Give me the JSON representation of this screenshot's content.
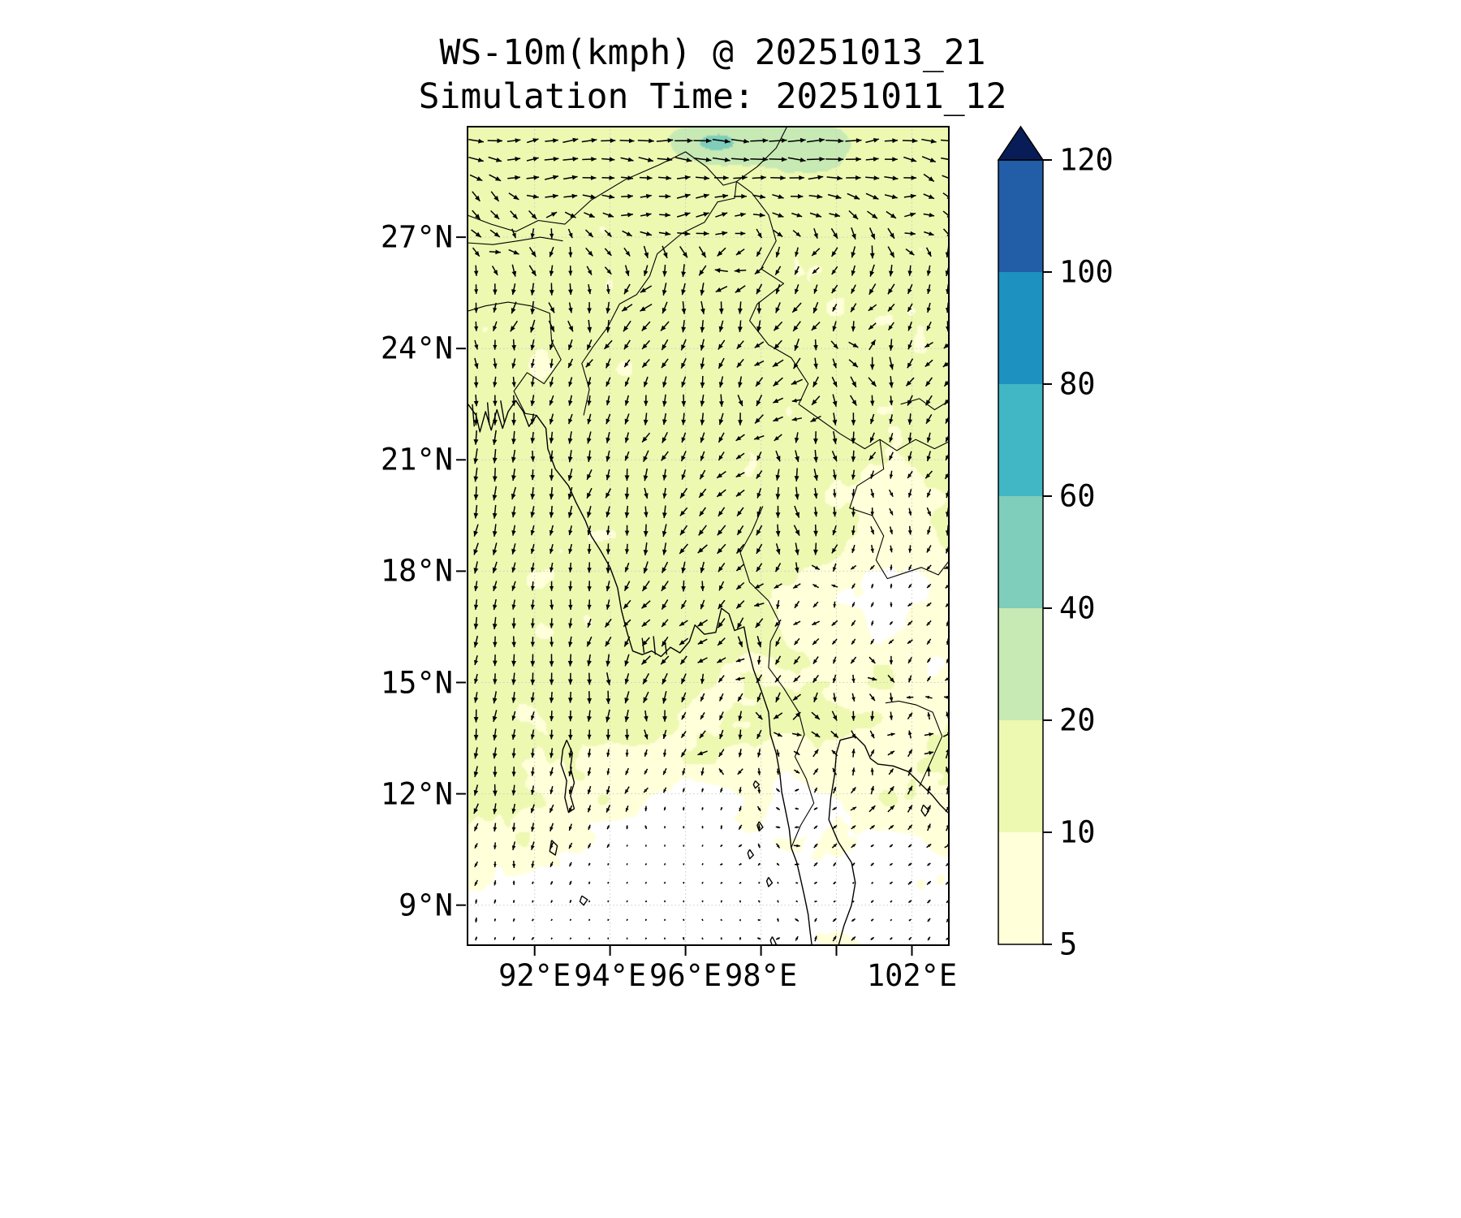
{
  "figure": {
    "title_line1": "WS-10m(kmph) @ 20251013_21",
    "title_line2": "Simulation Time: 20251011_12",
    "background": "#ffffff"
  },
  "chart_data": {
    "type": "heatmap",
    "subtype": "wind-speed-map-with-quiver",
    "title": "WS-10m(kmph) @ 20251013_21",
    "subtitle": "Simulation Time: 20251011_12",
    "variable": "10 m wind speed",
    "units": "kmph",
    "valid_time": "20251013_21",
    "simulation_time": "20251011_12",
    "map_extent": {
      "lon_min": 90.2,
      "lon_max": 103.0,
      "lat_min": 7.9,
      "lat_max": 30.0
    },
    "grid_on": true,
    "grid_color": "#cccccc",
    "x_axis": {
      "tick_lons": [
        92,
        94,
        96,
        98,
        100,
        102
      ],
      "tick_labels": [
        "92°E",
        "94°E",
        "96°E",
        "98°E",
        "",
        "102°E"
      ]
    },
    "y_axis": {
      "tick_lats": [
        27,
        24,
        21,
        18,
        15,
        12,
        9
      ],
      "tick_labels": [
        "27°N",
        "24°N",
        "21°N",
        "18°N",
        "15°N",
        "12°N",
        "9°N"
      ]
    },
    "colorbar": {
      "orientation": "vertical",
      "position": "right",
      "levels": [
        5,
        10,
        20,
        40,
        60,
        80,
        100,
        120
      ],
      "tick_labels": [
        "5",
        "10",
        "20",
        "40",
        "60",
        "80",
        "100",
        "120"
      ],
      "segment_colors": [
        "#ffffd9",
        "#edf8b1",
        "#c7e9b4",
        "#7fcdbb",
        "#41b6c4",
        "#1d91c0",
        "#225ea8"
      ],
      "extend_max_color": "#081d58",
      "below_min_color": "#ffffff"
    },
    "wind_speed_field": {
      "base_kmph": 12.5,
      "noise_amplitude_kmph": 5.0,
      "features": [
        {
          "name": "calm-zone-andaman-sea",
          "lon": 96.8,
          "lat": 10.6,
          "sx": 2.6,
          "sy": 1.9,
          "amp": -10
        },
        {
          "name": "calm-zone-southwest",
          "lon": 93.0,
          "lat": 8.3,
          "sx": 2.6,
          "sy": 1.5,
          "amp": -8
        },
        {
          "name": "calm-zone-east-thailand",
          "lon": 101.8,
          "lat": 17.0,
          "sx": 1.7,
          "sy": 2.2,
          "amp": -7
        },
        {
          "name": "calm-zone-southeast-corner",
          "lon": 102.9,
          "lat": 9.0,
          "sx": 1.8,
          "sy": 1.8,
          "amp": -7
        },
        {
          "name": "calm-band-south",
          "lon": 96.5,
          "lat": 8.0,
          "sx": 6.0,
          "sy": 1.6,
          "amp": -6
        },
        {
          "name": "breeze-bengal-coast",
          "lon": 90.4,
          "lat": 21.3,
          "sx": 1.1,
          "sy": 0.8,
          "amp": 6
        },
        {
          "name": "strong-wind-spot-north",
          "lon": 96.8,
          "lat": 29.55,
          "sx": 0.55,
          "sy": 0.28,
          "amp": 28
        },
        {
          "name": "wind-patch-northeast",
          "lon": 98.9,
          "lat": 29.5,
          "sx": 0.9,
          "sy": 0.5,
          "amp": 12
        },
        {
          "name": "wind-band-north-edge",
          "lon": 96.5,
          "lat": 30.0,
          "sx": 8.0,
          "sy": 1.2,
          "amp": 5
        }
      ]
    },
    "quiver": {
      "arrow_color": "#000000",
      "grid": {
        "lon_start": 90.45,
        "lat_start": 8.1,
        "step_deg": 0.5
      },
      "background_uv": [
        -0.15,
        -0.25
      ],
      "direction_noise": 0.45,
      "flow_regimes": [
        {
          "name": "northerly-over-bay-of-bengal",
          "u": 0.0,
          "v": -1.05,
          "lon": 91.5,
          "lat": 16.5,
          "sx": 3.2,
          "sy": 7.0
        },
        {
          "name": "westerly-along-himalaya",
          "u": 1.3,
          "v": 0.35,
          "lon": 96.6,
          "lat": 30.0,
          "sx": 9.0,
          "sy": 2.6
        },
        {
          "name": "southwesterly-gulf-of-thailand",
          "u": 0.75,
          "v": 0.9,
          "lon": 101.5,
          "lat": 10.0,
          "sx": 2.6,
          "sy": 3.2
        }
      ]
    },
    "coastlines": [
      [
        [
          90.2,
          22.55
        ],
        [
          90.45,
          22.2
        ],
        [
          90.55,
          21.75
        ],
        [
          90.7,
          22.3
        ],
        [
          90.85,
          21.8
        ],
        [
          91.0,
          22.35
        ],
        [
          91.15,
          21.85
        ],
        [
          91.3,
          22.3
        ],
        [
          91.5,
          22.6
        ],
        [
          91.7,
          22.3
        ],
        [
          91.85,
          21.9
        ],
        [
          92.05,
          22.2
        ],
        [
          92.3,
          21.85
        ],
        [
          92.35,
          21.3
        ],
        [
          92.55,
          20.75
        ],
        [
          92.9,
          20.3
        ],
        [
          93.1,
          19.85
        ],
        [
          93.35,
          19.35
        ],
        [
          93.5,
          18.95
        ],
        [
          93.75,
          18.55
        ],
        [
          94.0,
          18.1
        ],
        [
          94.2,
          17.55
        ],
        [
          94.3,
          16.95
        ],
        [
          94.45,
          16.35
        ],
        [
          94.6,
          15.85
        ],
        [
          94.85,
          15.75
        ],
        [
          95.1,
          15.85
        ],
        [
          95.35,
          15.7
        ],
        [
          95.6,
          15.95
        ],
        [
          95.85,
          15.8
        ],
        [
          96.1,
          16.1
        ],
        [
          96.25,
          16.55
        ],
        [
          96.5,
          16.3
        ],
        [
          96.8,
          16.35
        ],
        [
          96.95,
          17.0
        ],
        [
          97.15,
          16.85
        ],
        [
          97.3,
          16.4
        ],
        [
          97.55,
          16.5
        ],
        [
          97.65,
          15.95
        ],
        [
          97.8,
          15.35
        ],
        [
          98.0,
          14.8
        ],
        [
          98.2,
          14.2
        ],
        [
          98.25,
          13.6
        ],
        [
          98.4,
          13.1
        ],
        [
          98.5,
          12.55
        ],
        [
          98.55,
          12.05
        ],
        [
          98.65,
          11.55
        ],
        [
          98.75,
          11.05
        ],
        [
          98.8,
          10.55
        ],
        [
          98.95,
          10.15
        ],
        [
          99.05,
          9.7
        ],
        [
          99.15,
          9.25
        ],
        [
          99.25,
          8.75
        ],
        [
          99.3,
          8.3
        ],
        [
          99.35,
          7.9
        ]
      ],
      [
        [
          100.05,
          7.9
        ],
        [
          100.2,
          8.45
        ],
        [
          100.4,
          9.0
        ],
        [
          100.5,
          9.6
        ],
        [
          100.4,
          10.15
        ],
        [
          100.05,
          10.7
        ],
        [
          99.8,
          11.3
        ],
        [
          99.85,
          11.9
        ],
        [
          99.95,
          12.5
        ],
        [
          100.0,
          13.1
        ],
        [
          100.1,
          13.45
        ],
        [
          100.5,
          13.55
        ],
        [
          100.75,
          13.3
        ],
        [
          100.9,
          12.95
        ],
        [
          101.1,
          12.8
        ],
        [
          101.5,
          12.75
        ],
        [
          101.9,
          12.6
        ],
        [
          102.3,
          12.2
        ],
        [
          102.55,
          11.95
        ],
        [
          102.75,
          11.7
        ],
        [
          103.0,
          11.45
        ]
      ],
      [
        [
          92.85,
          13.45
        ],
        [
          93.0,
          13.1
        ],
        [
          92.95,
          12.7
        ],
        [
          93.05,
          12.3
        ],
        [
          92.95,
          11.95
        ],
        [
          93.05,
          11.6
        ],
        [
          92.9,
          11.5
        ],
        [
          92.8,
          11.9
        ],
        [
          92.85,
          12.35
        ],
        [
          92.7,
          12.8
        ],
        [
          92.75,
          13.2
        ],
        [
          92.85,
          13.45
        ]
      ],
      [
        [
          92.45,
          10.75
        ],
        [
          92.6,
          10.6
        ],
        [
          92.55,
          10.35
        ],
        [
          92.4,
          10.45
        ],
        [
          92.45,
          10.75
        ]
      ],
      [
        [
          93.25,
          9.25
        ],
        [
          93.4,
          9.15
        ],
        [
          93.3,
          9.0
        ],
        [
          93.2,
          9.1
        ],
        [
          93.25,
          9.25
        ]
      ],
      [
        [
          97.85,
          12.35
        ],
        [
          97.95,
          12.25
        ],
        [
          97.85,
          12.15
        ],
        [
          97.8,
          12.25
        ],
        [
          97.85,
          12.35
        ]
      ],
      [
        [
          97.95,
          11.25
        ],
        [
          98.05,
          11.1
        ],
        [
          97.95,
          11.0
        ],
        [
          97.9,
          11.15
        ],
        [
          97.95,
          11.25
        ]
      ],
      [
        [
          97.7,
          10.5
        ],
        [
          97.8,
          10.35
        ],
        [
          97.7,
          10.25
        ],
        [
          97.65,
          10.4
        ],
        [
          97.7,
          10.5
        ]
      ],
      [
        [
          98.2,
          9.75
        ],
        [
          98.3,
          9.6
        ],
        [
          98.2,
          9.5
        ],
        [
          98.15,
          9.65
        ],
        [
          98.2,
          9.75
        ]
      ],
      [
        [
          98.3,
          8.15
        ],
        [
          98.4,
          7.95
        ],
        [
          98.3,
          7.9
        ],
        [
          98.25,
          8.05
        ],
        [
          98.3,
          8.15
        ]
      ],
      [
        [
          102.3,
          11.7
        ],
        [
          102.45,
          11.55
        ],
        [
          102.35,
          11.4
        ],
        [
          102.25,
          11.55
        ],
        [
          102.3,
          11.7
        ]
      ],
      [
        [
          94.85,
          16.2
        ],
        [
          94.9,
          15.8
        ]
      ],
      [
        [
          95.15,
          16.25
        ],
        [
          95.2,
          15.75
        ]
      ],
      [
        [
          95.45,
          16.15
        ],
        [
          95.5,
          15.75
        ]
      ],
      [
        [
          90.35,
          22.5
        ],
        [
          90.4,
          21.9
        ]
      ],
      [
        [
          90.75,
          22.55
        ],
        [
          90.8,
          21.95
        ]
      ],
      [
        [
          91.1,
          22.6
        ],
        [
          91.2,
          22.0
        ]
      ]
    ],
    "borders": [
      [
        [
          90.2,
          25.0
        ],
        [
          90.7,
          25.15
        ],
        [
          91.3,
          25.25
        ],
        [
          91.9,
          25.15
        ],
        [
          92.4,
          24.95
        ],
        [
          92.45,
          24.2
        ],
        [
          92.7,
          23.7
        ],
        [
          92.25,
          23.05
        ],
        [
          91.8,
          23.35
        ],
        [
          91.45,
          22.85
        ],
        [
          91.75,
          22.25
        ],
        [
          92.05,
          22.2
        ],
        [
          92.3,
          21.85
        ]
      ],
      [
        [
          93.3,
          22.2
        ],
        [
          93.45,
          22.9
        ],
        [
          93.25,
          23.6
        ],
        [
          93.55,
          24.05
        ],
        [
          93.95,
          24.6
        ],
        [
          94.25,
          25.2
        ],
        [
          94.7,
          25.45
        ],
        [
          95.05,
          25.95
        ],
        [
          95.25,
          26.55
        ],
        [
          95.9,
          27.1
        ],
        [
          96.5,
          27.4
        ],
        [
          96.85,
          27.95
        ],
        [
          97.3,
          28.05
        ],
        [
          97.35,
          28.5
        ]
      ],
      [
        [
          97.35,
          28.5
        ],
        [
          97.75,
          28.2
        ],
        [
          98.2,
          27.6
        ],
        [
          98.4,
          26.9
        ],
        [
          98.0,
          26.15
        ],
        [
          98.6,
          25.75
        ],
        [
          97.9,
          25.2
        ],
        [
          97.7,
          24.75
        ],
        [
          98.2,
          24.1
        ],
        [
          98.8,
          23.75
        ],
        [
          99.25,
          23.05
        ],
        [
          99.0,
          22.5
        ],
        [
          99.55,
          22.1
        ],
        [
          100.1,
          21.7
        ],
        [
          100.75,
          21.3
        ],
        [
          101.15,
          21.55
        ],
        [
          101.6,
          21.25
        ],
        [
          102.1,
          21.55
        ],
        [
          102.6,
          21.3
        ],
        [
          103.0,
          21.5
        ]
      ],
      [
        [
          101.15,
          21.55
        ],
        [
          101.25,
          20.75
        ],
        [
          100.55,
          20.3
        ],
        [
          100.35,
          19.7
        ],
        [
          100.95,
          19.5
        ],
        [
          101.25,
          18.95
        ],
        [
          101.05,
          18.3
        ],
        [
          101.35,
          17.8
        ],
        [
          101.8,
          17.95
        ],
        [
          102.25,
          18.1
        ],
        [
          102.7,
          17.9
        ],
        [
          103.0,
          18.3
        ]
      ],
      [
        [
          98.05,
          19.75
        ],
        [
          97.75,
          19.05
        ],
        [
          97.45,
          18.5
        ],
        [
          97.7,
          17.7
        ],
        [
          98.2,
          17.2
        ],
        [
          98.5,
          16.6
        ],
        [
          98.25,
          16.1
        ],
        [
          98.2,
          15.4
        ],
        [
          98.6,
          14.85
        ],
        [
          99.0,
          14.2
        ],
        [
          99.15,
          13.6
        ],
        [
          98.9,
          13.0
        ],
        [
          99.2,
          12.4
        ],
        [
          99.4,
          11.75
        ],
        [
          99.05,
          11.15
        ],
        [
          98.8,
          10.55
        ]
      ],
      [
        [
          90.2,
          26.85
        ],
        [
          90.9,
          26.8
        ],
        [
          91.55,
          26.9
        ],
        [
          92.15,
          27.0
        ],
        [
          92.75,
          26.9
        ]
      ],
      [
        [
          90.2,
          27.6
        ],
        [
          90.85,
          27.35
        ],
        [
          91.5,
          27.15
        ],
        [
          92.1,
          27.45
        ],
        [
          92.8,
          27.35
        ],
        [
          93.5,
          28.0
        ],
        [
          94.4,
          28.55
        ],
        [
          95.3,
          28.95
        ],
        [
          96.0,
          29.3
        ],
        [
          96.55,
          28.9
        ],
        [
          97.0,
          28.4
        ],
        [
          97.35,
          28.5
        ]
      ],
      [
        [
          97.35,
          28.5
        ],
        [
          97.9,
          28.9
        ],
        [
          98.4,
          29.4
        ],
        [
          98.7,
          30.0
        ]
      ],
      [
        [
          101.7,
          22.5
        ],
        [
          102.2,
          22.65
        ],
        [
          102.6,
          22.35
        ],
        [
          103.0,
          22.6
        ]
      ],
      [
        [
          102.2,
          12.2
        ],
        [
          102.45,
          12.75
        ],
        [
          102.8,
          13.55
        ],
        [
          102.55,
          14.2
        ],
        [
          102.1,
          14.4
        ],
        [
          101.65,
          14.5
        ],
        [
          101.3,
          14.45
        ]
      ]
    ]
  }
}
